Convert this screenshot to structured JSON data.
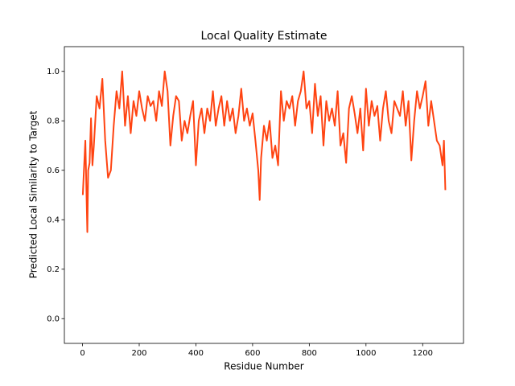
{
  "chart_data": {
    "type": "line",
    "title": "Local Quality Estimate",
    "x_label": "Residue Number",
    "y_label": "Predicted Local Similarity to Target",
    "xlim": [
      -64,
      1344
    ],
    "ylim": [
      -0.1,
      1.1
    ],
    "xticks": [
      0,
      200,
      400,
      600,
      800,
      1000,
      1200
    ],
    "yticks": [
      {
        "value": 0,
        "label": "0.0"
      },
      0.2,
      0.4,
      0.6,
      0.8,
      {
        "value": 1,
        "label": "1.0"
      }
    ],
    "series": [
      {
        "color": "#ff4412",
        "x": [
          1,
          5,
          10,
          17,
          20,
          25,
          30,
          35,
          40,
          50,
          60,
          70,
          80,
          90,
          100,
          110,
          120,
          130,
          140,
          150,
          160,
          170,
          180,
          190,
          200,
          210,
          220,
          230,
          240,
          250,
          260,
          270,
          280,
          290,
          300,
          310,
          320,
          330,
          340,
          350,
          360,
          370,
          380,
          390,
          400,
          410,
          420,
          430,
          440,
          450,
          460,
          470,
          480,
          490,
          500,
          510,
          520,
          530,
          540,
          550,
          560,
          570,
          580,
          590,
          600,
          610,
          620,
          625,
          630,
          640,
          650,
          660,
          670,
          680,
          690,
          700,
          710,
          720,
          730,
          740,
          750,
          760,
          770,
          780,
          790,
          800,
          810,
          820,
          830,
          840,
          850,
          860,
          870,
          880,
          890,
          900,
          910,
          920,
          930,
          940,
          950,
          960,
          970,
          980,
          990,
          1000,
          1010,
          1020,
          1030,
          1040,
          1050,
          1060,
          1070,
          1080,
          1090,
          1100,
          1110,
          1120,
          1130,
          1140,
          1150,
          1160,
          1170,
          1180,
          1190,
          1200,
          1210,
          1220,
          1230,
          1240,
          1250,
          1260,
          1270,
          1275,
          1280
        ],
        "values": [
          0.5,
          0.6,
          0.72,
          0.35,
          0.6,
          0.63,
          0.81,
          0.62,
          0.7,
          0.9,
          0.85,
          0.97,
          0.72,
          0.57,
          0.6,
          0.78,
          0.92,
          0.85,
          1.0,
          0.78,
          0.9,
          0.75,
          0.88,
          0.82,
          0.92,
          0.85,
          0.8,
          0.9,
          0.86,
          0.88,
          0.8,
          0.92,
          0.86,
          1.0,
          0.92,
          0.7,
          0.82,
          0.9,
          0.88,
          0.72,
          0.8,
          0.75,
          0.82,
          0.88,
          0.62,
          0.8,
          0.85,
          0.75,
          0.85,
          0.8,
          0.92,
          0.78,
          0.85,
          0.9,
          0.78,
          0.88,
          0.8,
          0.85,
          0.75,
          0.82,
          0.93,
          0.8,
          0.85,
          0.78,
          0.83,
          0.72,
          0.6,
          0.48,
          0.65,
          0.78,
          0.72,
          0.8,
          0.65,
          0.7,
          0.62,
          0.92,
          0.8,
          0.88,
          0.85,
          0.9,
          0.78,
          0.88,
          0.92,
          1.0,
          0.85,
          0.88,
          0.75,
          0.95,
          0.82,
          0.9,
          0.7,
          0.88,
          0.8,
          0.85,
          0.78,
          0.92,
          0.7,
          0.75,
          0.63,
          0.85,
          0.9,
          0.83,
          0.75,
          0.85,
          0.68,
          0.93,
          0.78,
          0.88,
          0.82,
          0.86,
          0.72,
          0.85,
          0.92,
          0.8,
          0.75,
          0.88,
          0.85,
          0.82,
          0.92,
          0.78,
          0.88,
          0.64,
          0.8,
          0.92,
          0.85,
          0.9,
          0.96,
          0.78,
          0.88,
          0.8,
          0.72,
          0.7,
          0.62,
          0.72,
          0.52
        ]
      }
    ]
  }
}
